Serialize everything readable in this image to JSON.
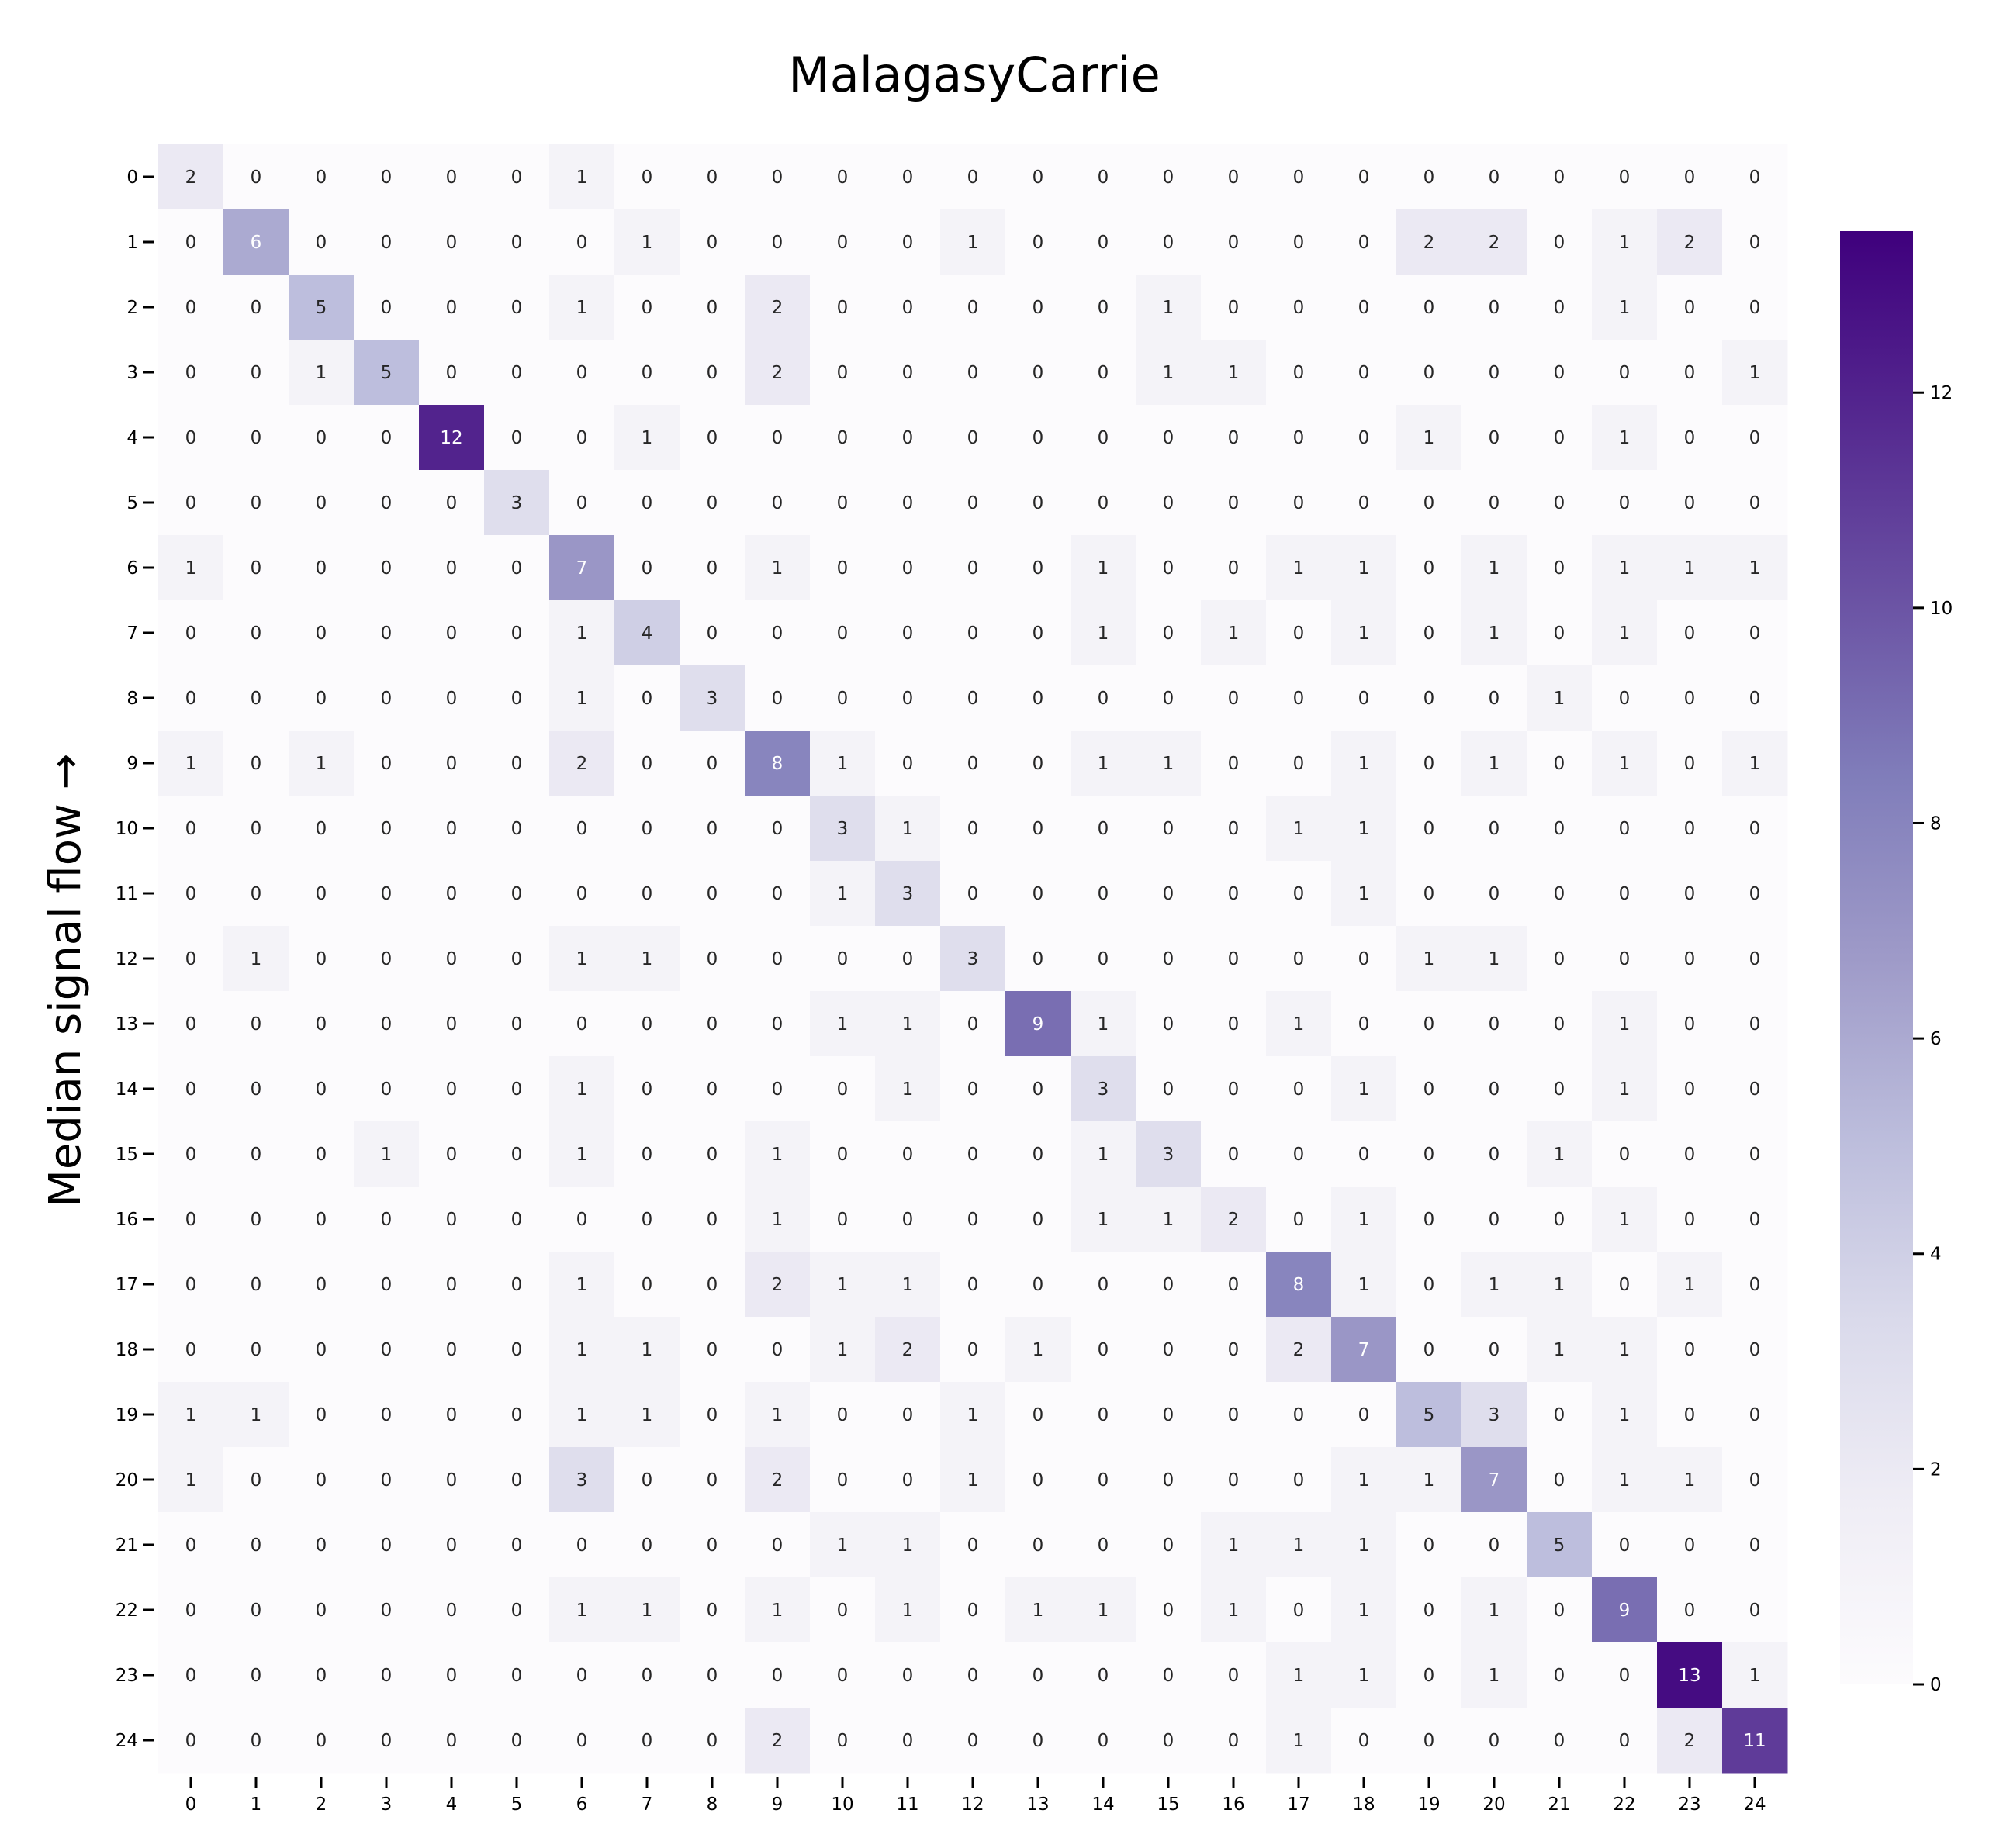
{
  "chart_data": {
    "type": "heatmap",
    "title": "MalagasyCarrie",
    "xlabel": "",
    "ylabel": "Median signal flow →",
    "x_labels": [
      "0",
      "1",
      "2",
      "3",
      "4",
      "5",
      "6",
      "7",
      "8",
      "9",
      "10",
      "11",
      "12",
      "13",
      "14",
      "15",
      "16",
      "17",
      "18",
      "19",
      "20",
      "21",
      "22",
      "23",
      "24"
    ],
    "y_labels": [
      "0",
      "1",
      "2",
      "3",
      "4",
      "5",
      "6",
      "7",
      "8",
      "9",
      "10",
      "11",
      "12",
      "13",
      "14",
      "15",
      "16",
      "17",
      "18",
      "19",
      "20",
      "21",
      "22",
      "23",
      "24"
    ],
    "matrix": [
      [
        2,
        0,
        0,
        0,
        0,
        0,
        1,
        0,
        0,
        0,
        0,
        0,
        0,
        0,
        0,
        0,
        0,
        0,
        0,
        0,
        0,
        0,
        0,
        0,
        0
      ],
      [
        0,
        6,
        0,
        0,
        0,
        0,
        0,
        1,
        0,
        0,
        0,
        0,
        1,
        0,
        0,
        0,
        0,
        0,
        0,
        2,
        2,
        0,
        1,
        2,
        0
      ],
      [
        0,
        0,
        5,
        0,
        0,
        0,
        1,
        0,
        0,
        2,
        0,
        0,
        0,
        0,
        0,
        1,
        0,
        0,
        0,
        0,
        0,
        0,
        1,
        0,
        0
      ],
      [
        0,
        0,
        1,
        5,
        0,
        0,
        0,
        0,
        0,
        2,
        0,
        0,
        0,
        0,
        0,
        1,
        1,
        0,
        0,
        0,
        0,
        0,
        0,
        0,
        1
      ],
      [
        0,
        0,
        0,
        0,
        12,
        0,
        0,
        1,
        0,
        0,
        0,
        0,
        0,
        0,
        0,
        0,
        0,
        0,
        0,
        1,
        0,
        0,
        1,
        0,
        0
      ],
      [
        0,
        0,
        0,
        0,
        0,
        3,
        0,
        0,
        0,
        0,
        0,
        0,
        0,
        0,
        0,
        0,
        0,
        0,
        0,
        0,
        0,
        0,
        0,
        0,
        0
      ],
      [
        1,
        0,
        0,
        0,
        0,
        0,
        7,
        0,
        0,
        1,
        0,
        0,
        0,
        0,
        1,
        0,
        0,
        1,
        1,
        0,
        1,
        0,
        1,
        1,
        1
      ],
      [
        0,
        0,
        0,
        0,
        0,
        0,
        1,
        4,
        0,
        0,
        0,
        0,
        0,
        0,
        1,
        0,
        1,
        0,
        1,
        0,
        1,
        0,
        1,
        0,
        0
      ],
      [
        0,
        0,
        0,
        0,
        0,
        0,
        1,
        0,
        3,
        0,
        0,
        0,
        0,
        0,
        0,
        0,
        0,
        0,
        0,
        0,
        0,
        1,
        0,
        0,
        0
      ],
      [
        1,
        0,
        1,
        0,
        0,
        0,
        2,
        0,
        0,
        8,
        1,
        0,
        0,
        0,
        1,
        1,
        0,
        0,
        1,
        0,
        1,
        0,
        1,
        0,
        1
      ],
      [
        0,
        0,
        0,
        0,
        0,
        0,
        0,
        0,
        0,
        0,
        3,
        1,
        0,
        0,
        0,
        0,
        0,
        1,
        1,
        0,
        0,
        0,
        0,
        0,
        0
      ],
      [
        0,
        0,
        0,
        0,
        0,
        0,
        0,
        0,
        0,
        0,
        1,
        3,
        0,
        0,
        0,
        0,
        0,
        0,
        1,
        0,
        0,
        0,
        0,
        0,
        0
      ],
      [
        0,
        1,
        0,
        0,
        0,
        0,
        1,
        1,
        0,
        0,
        0,
        0,
        3,
        0,
        0,
        0,
        0,
        0,
        0,
        1,
        1,
        0,
        0,
        0,
        0
      ],
      [
        0,
        0,
        0,
        0,
        0,
        0,
        0,
        0,
        0,
        0,
        1,
        1,
        0,
        9,
        1,
        0,
        0,
        1,
        0,
        0,
        0,
        0,
        1,
        0,
        0
      ],
      [
        0,
        0,
        0,
        0,
        0,
        0,
        1,
        0,
        0,
        0,
        0,
        1,
        0,
        0,
        3,
        0,
        0,
        0,
        1,
        0,
        0,
        0,
        1,
        0,
        0
      ],
      [
        0,
        0,
        0,
        1,
        0,
        0,
        1,
        0,
        0,
        1,
        0,
        0,
        0,
        0,
        1,
        3,
        0,
        0,
        0,
        0,
        0,
        1,
        0,
        0,
        0
      ],
      [
        0,
        0,
        0,
        0,
        0,
        0,
        0,
        0,
        0,
        1,
        0,
        0,
        0,
        0,
        1,
        1,
        2,
        0,
        1,
        0,
        0,
        0,
        1,
        0,
        0
      ],
      [
        0,
        0,
        0,
        0,
        0,
        0,
        1,
        0,
        0,
        2,
        1,
        1,
        0,
        0,
        0,
        0,
        0,
        8,
        1,
        0,
        1,
        1,
        0,
        1,
        0
      ],
      [
        0,
        0,
        0,
        0,
        0,
        0,
        1,
        1,
        0,
        0,
        1,
        2,
        0,
        1,
        0,
        0,
        0,
        2,
        7,
        0,
        0,
        1,
        1,
        0,
        0
      ],
      [
        1,
        1,
        0,
        0,
        0,
        0,
        1,
        1,
        0,
        1,
        0,
        0,
        1,
        0,
        0,
        0,
        0,
        0,
        0,
        5,
        3,
        0,
        1,
        0,
        0
      ],
      [
        1,
        0,
        0,
        0,
        0,
        0,
        3,
        0,
        0,
        2,
        0,
        0,
        1,
        0,
        0,
        0,
        0,
        0,
        1,
        1,
        7,
        0,
        1,
        1,
        0
      ],
      [
        0,
        0,
        0,
        0,
        0,
        0,
        0,
        0,
        0,
        0,
        1,
        1,
        0,
        0,
        0,
        0,
        1,
        1,
        1,
        0,
        0,
        5,
        0,
        0,
        0
      ],
      [
        0,
        0,
        0,
        0,
        0,
        0,
        1,
        1,
        0,
        1,
        0,
        1,
        0,
        1,
        1,
        0,
        1,
        0,
        1,
        0,
        1,
        0,
        9,
        0,
        0
      ],
      [
        0,
        0,
        0,
        0,
        0,
        0,
        0,
        0,
        0,
        0,
        0,
        0,
        0,
        0,
        0,
        0,
        0,
        1,
        1,
        0,
        1,
        0,
        0,
        13,
        1
      ],
      [
        0,
        0,
        0,
        0,
        0,
        0,
        0,
        0,
        0,
        2,
        0,
        0,
        0,
        0,
        0,
        0,
        0,
        1,
        0,
        0,
        0,
        0,
        0,
        2,
        11
      ]
    ],
    "colorscale": "Purples",
    "color_range": [
      0,
      13.5
    ],
    "colorbar_ticks": [
      0,
      2,
      4,
      6,
      8,
      10,
      12
    ],
    "colors": {
      "low": "#fcfbfd",
      "high": "#3f007d",
      "text_dark": "#262626",
      "text_light": "#ffffff"
    }
  }
}
